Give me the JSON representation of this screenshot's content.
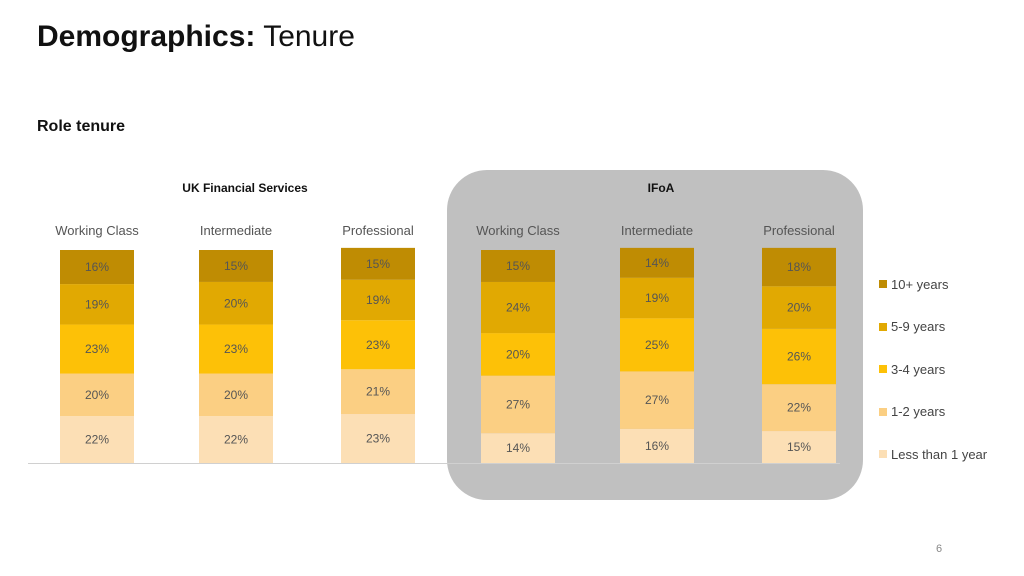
{
  "header": {
    "title_bold": "Demographics:",
    "title_rest": "Tenure",
    "subtitle": "Role tenure"
  },
  "groups": [
    "UK Financial Services",
    "IFoA"
  ],
  "page_number": "6",
  "chart_data": {
    "type": "bar",
    "stacked": true,
    "percent_format": true,
    "categories": [
      "Working Class",
      "Intermediate",
      "Professional",
      "Working Class",
      "Intermediate",
      "Professional"
    ],
    "category_groups": [
      "UK Financial Services",
      "UK Financial Services",
      "UK Financial Services",
      "IFoA",
      "IFoA",
      "IFoA"
    ],
    "series": [
      {
        "name": "Less than 1 year",
        "color": "#fcdfb5",
        "values": [
          22,
          22,
          23,
          14,
          16,
          15
        ]
      },
      {
        "name": "1-2 years",
        "color": "#fbcf83",
        "values": [
          20,
          20,
          21,
          27,
          27,
          22
        ]
      },
      {
        "name": "3-4 years",
        "color": "#fdc107",
        "values": [
          23,
          23,
          23,
          20,
          25,
          26
        ]
      },
      {
        "name": "5-9 years",
        "color": "#e1a902",
        "values": [
          19,
          20,
          19,
          24,
          19,
          20
        ]
      },
      {
        "name": "10+ years",
        "color": "#bf8c03",
        "values": [
          16,
          15,
          15,
          15,
          14,
          18
        ]
      }
    ],
    "legend_position": "right",
    "grid": false
  }
}
